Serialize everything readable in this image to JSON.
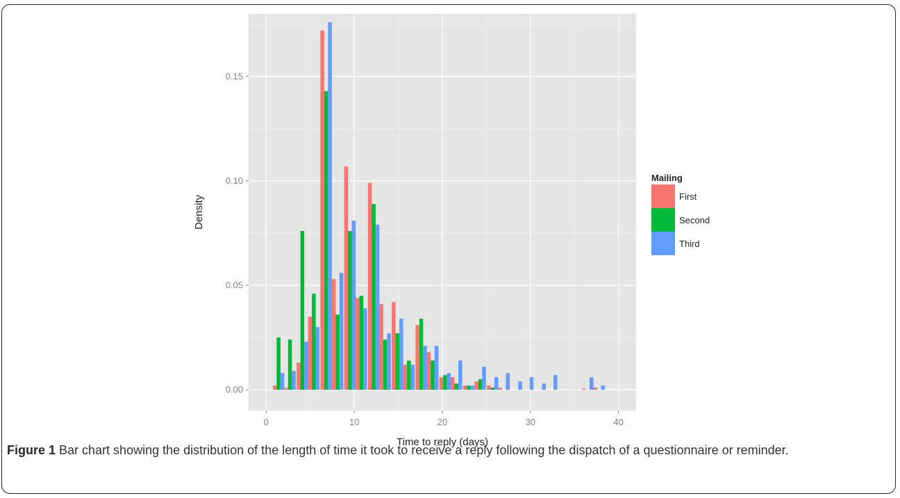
{
  "figure": {
    "label": "Figure 1",
    "caption": "Bar chart showing the distribution of the length of time it took to receive a reply following the dispatch of a questionnaire or reminder."
  },
  "chart_data": {
    "type": "bar",
    "xlabel": "Time to reply (days)",
    "ylabel": "Density",
    "xlim": [
      -2,
      42
    ],
    "ylim": [
      -0.01,
      0.18
    ],
    "xticks": [
      "0",
      "10",
      "20",
      "30",
      "40"
    ],
    "yticks": [
      "0.00",
      "0.05",
      "0.10",
      "0.15"
    ],
    "grid": true,
    "legend": {
      "title": "Mailing",
      "placement": "right"
    },
    "colors": {
      "First": "#F8766D",
      "Second": "#00BA38",
      "Third": "#619CFF"
    },
    "x": [
      1.4,
      2.7,
      4.1,
      5.4,
      6.8,
      8.1,
      9.5,
      10.8,
      12.2,
      13.5,
      14.9,
      16.2,
      17.6,
      18.9,
      20.3,
      21.6,
      23.0,
      24.3,
      25.7,
      27.0,
      28.4,
      29.7,
      31.1,
      32.4,
      33.8,
      35.1,
      36.5,
      37.8
    ],
    "series": [
      {
        "name": "First",
        "values": [
          0.002,
          0.001,
          0.013,
          0.035,
          0.172,
          0.053,
          0.107,
          0.044,
          0.099,
          0.041,
          0.042,
          0.012,
          0.031,
          0.018,
          0.006,
          0.006,
          0.002,
          0.004,
          0.002,
          0.001,
          0.0,
          0.0,
          0.0,
          0.0,
          0.0,
          0.0,
          0.0005,
          0.001
        ]
      },
      {
        "name": "Second",
        "values": [
          0.025,
          0.024,
          0.076,
          0.046,
          0.143,
          0.036,
          0.076,
          0.045,
          0.089,
          0.024,
          0.027,
          0.014,
          0.034,
          0.014,
          0.007,
          0.003,
          0.002,
          0.005,
          0.001,
          0.0,
          0.0,
          0.0,
          0.0,
          0.0,
          0.0,
          0.0,
          0.0,
          0.0
        ]
      },
      {
        "name": "Third",
        "values": [
          0.008,
          0.009,
          0.023,
          0.03,
          0.176,
          0.056,
          0.081,
          0.039,
          0.079,
          0.027,
          0.034,
          0.012,
          0.021,
          0.021,
          0.008,
          0.014,
          0.002,
          0.011,
          0.006,
          0.008,
          0.004,
          0.006,
          0.003,
          0.007,
          0.0,
          0.0,
          0.006,
          0.002
        ]
      }
    ]
  }
}
